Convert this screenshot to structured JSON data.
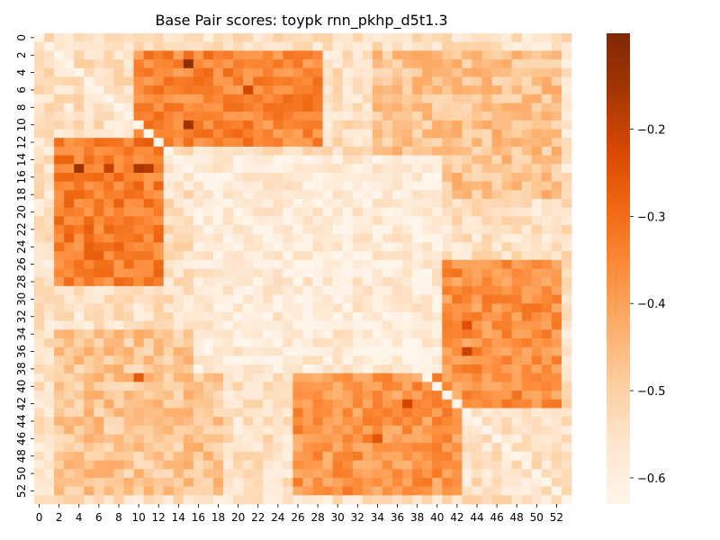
{
  "chart_data": {
    "type": "heatmap",
    "title": "Base Pair scores: toypk rnn_pkhp_d5t1.3",
    "xlabel": "",
    "ylabel": "",
    "n": 54,
    "x_tick_labels": [
      "0",
      "2",
      "4",
      "6",
      "8",
      "10",
      "12",
      "14",
      "16",
      "18",
      "20",
      "22",
      "24",
      "26",
      "28",
      "30",
      "32",
      "34",
      "36",
      "38",
      "40",
      "42",
      "44",
      "46",
      "48",
      "50",
      "52"
    ],
    "y_tick_labels": [
      "0",
      "2",
      "4",
      "6",
      "8",
      "10",
      "12",
      "14",
      "16",
      "18",
      "20",
      "22",
      "24",
      "26",
      "28",
      "30",
      "32",
      "34",
      "36",
      "38",
      "40",
      "42",
      "44",
      "46",
      "48",
      "50",
      "52"
    ],
    "colorbar": {
      "vmin": -0.63,
      "vmax": -0.09,
      "ticks": [
        -0.2,
        -0.3,
        -0.4,
        -0.5,
        -0.6
      ],
      "tick_labels": [
        "−0.2",
        "−0.3",
        "−0.4",
        "−0.5",
        "−0.6"
      ],
      "colormap": "Oranges"
    },
    "base_value": -0.55,
    "blocks": [
      {
        "rows": [
          2,
          12
        ],
        "cols": [
          10,
          28
        ],
        "value": -0.35
      },
      {
        "rows": [
          12,
          28
        ],
        "cols": [
          2,
          12
        ],
        "value": -0.33
      },
      {
        "rows": [
          26,
          42
        ],
        "cols": [
          40,
          52
        ],
        "value": -0.37
      },
      {
        "rows": [
          38,
          52
        ],
        "cols": [
          26,
          42
        ],
        "value": -0.38
      },
      {
        "rows": [
          2,
          18
        ],
        "cols": [
          34,
          52
        ],
        "value": -0.47
      },
      {
        "rows": [
          34,
          52
        ],
        "cols": [
          2,
          18
        ],
        "value": -0.48
      },
      {
        "rows": [
          14,
          38
        ],
        "cols": [
          16,
          40
        ],
        "value": -0.59
      }
    ],
    "hotspots": [
      {
        "row": 3,
        "col": 15,
        "value": -0.12
      },
      {
        "row": 10,
        "col": 15,
        "value": -0.15
      },
      {
        "row": 15,
        "col": 4,
        "value": -0.14
      },
      {
        "row": 15,
        "col": 10,
        "value": -0.16
      },
      {
        "row": 15,
        "col": 11,
        "value": -0.18
      },
      {
        "row": 15,
        "col": 7,
        "value": -0.2
      },
      {
        "row": 6,
        "col": 21,
        "value": -0.22
      },
      {
        "row": 42,
        "col": 37,
        "value": -0.22
      },
      {
        "row": 36,
        "col": 43,
        "value": -0.2
      },
      {
        "row": 39,
        "col": 10,
        "value": -0.26
      },
      {
        "row": 33,
        "col": 43,
        "value": -0.24
      },
      {
        "row": 46,
        "col": 34,
        "value": -0.25
      }
    ],
    "diagonal_value": -0.63,
    "seed": 7
  }
}
